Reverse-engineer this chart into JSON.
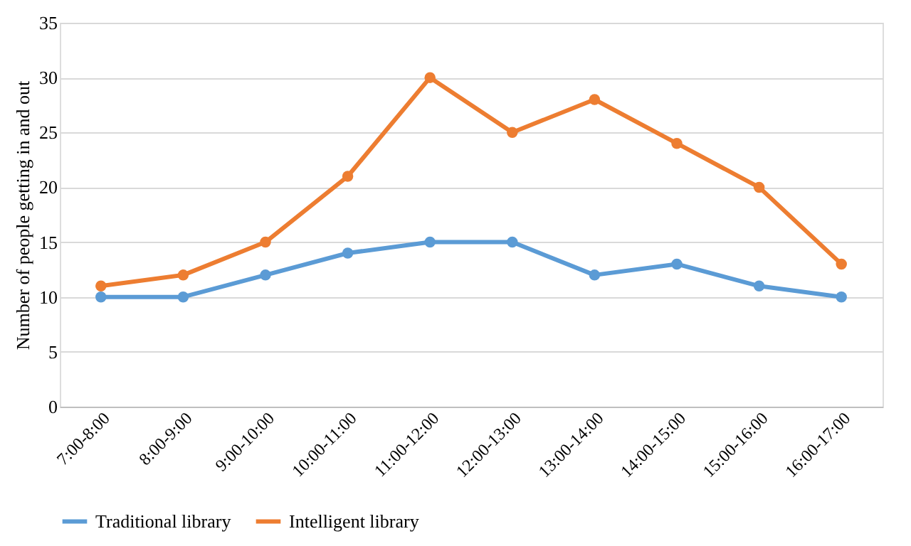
{
  "chart_data": {
    "type": "line",
    "ylabel": "Number of people getting in and out",
    "categories": [
      "7:00-8:00",
      "8:00-9:00",
      "9:00-10:00",
      "10:00-11:00",
      "11:00-12:00",
      "12:00-13:00",
      "13:00-14:00",
      "14:00-15:00",
      "15:00-16:00",
      "16:00-17:00"
    ],
    "series": [
      {
        "name": "Traditional library",
        "color": "#5b9bd5",
        "values": [
          10,
          10,
          12,
          14,
          15,
          15,
          12,
          13,
          11,
          10
        ]
      },
      {
        "name": "Intelligent library",
        "color": "#ed7d31",
        "values": [
          11,
          12,
          15,
          21,
          30,
          25,
          28,
          24,
          20,
          13
        ]
      }
    ],
    "ylim": [
      0,
      35
    ],
    "yticks": [
      0,
      5,
      10,
      15,
      20,
      25,
      30,
      35
    ],
    "grid": "y",
    "legend": "bottom",
    "marker": "circle",
    "line_style": "solid"
  }
}
